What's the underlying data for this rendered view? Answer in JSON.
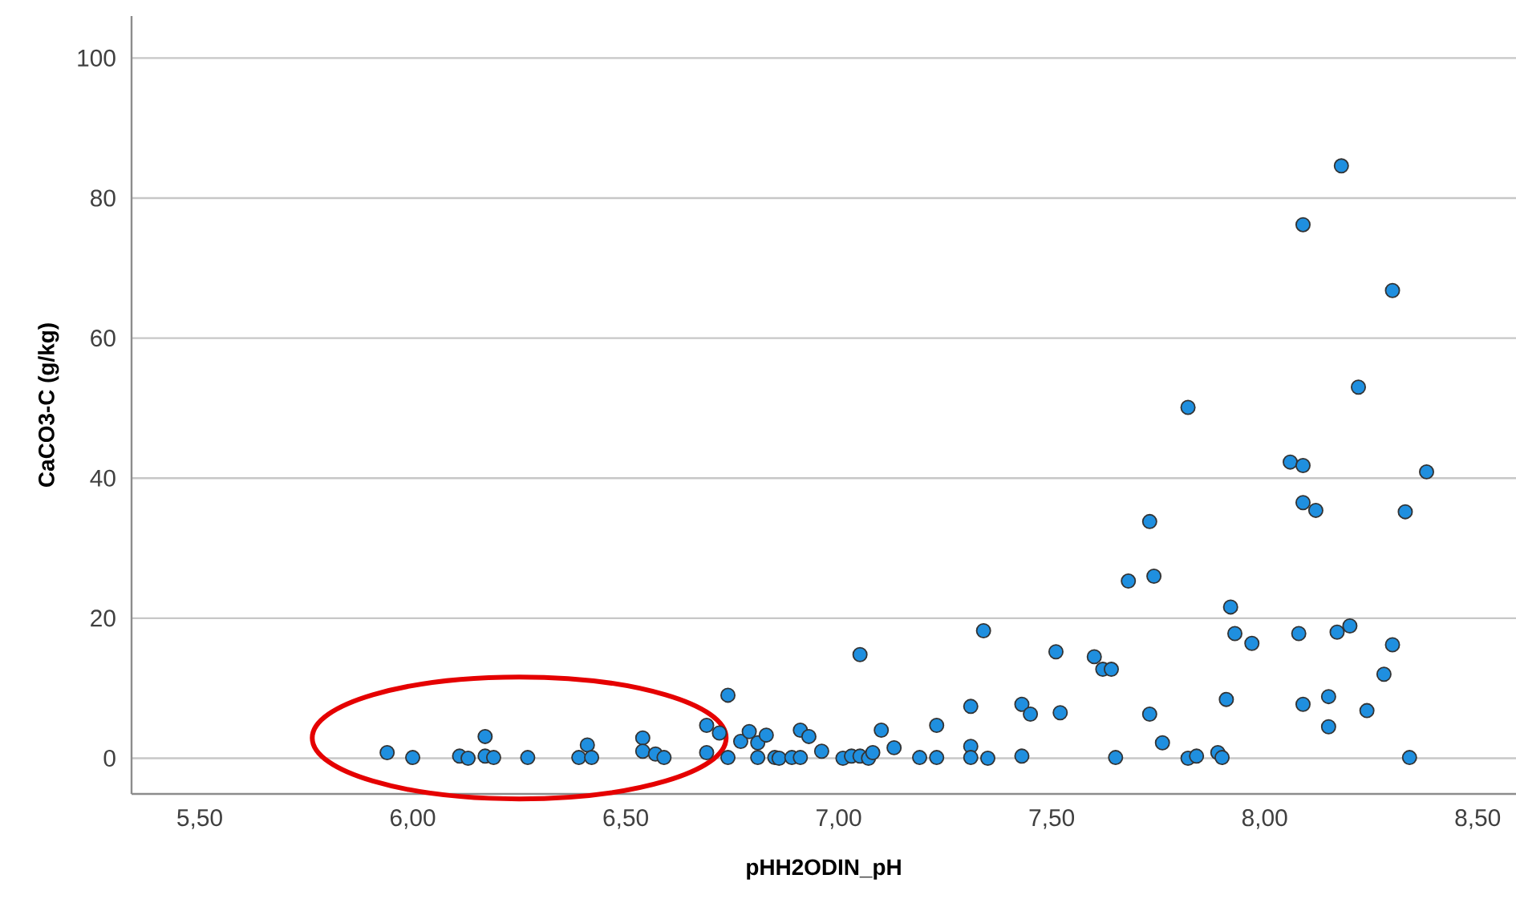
{
  "chart_data": {
    "type": "scatter",
    "xlabel": "pHH2ODIN_pH",
    "ylabel": "CaCO3-C (g/kg)",
    "xlim": [
      5.34,
      8.59
    ],
    "ylim": [
      -5.1,
      106
    ],
    "xticks": [
      {
        "value": 5.5,
        "label": "5,50"
      },
      {
        "value": 6.0,
        "label": "6,00"
      },
      {
        "value": 6.5,
        "label": "6,50"
      },
      {
        "value": 7.0,
        "label": "7,00"
      },
      {
        "value": 7.5,
        "label": "7,50"
      },
      {
        "value": 8.0,
        "label": "8,00"
      },
      {
        "value": 8.5,
        "label": "8,50"
      }
    ],
    "yticks": [
      0,
      20,
      40,
      60,
      80,
      100
    ],
    "grid": "y",
    "marker": "circle",
    "series": [
      {
        "color": "#1f8fdf",
        "x": [
          5.94,
          6.0,
          6.11,
          6.13,
          6.17,
          6.17,
          6.19,
          6.27,
          6.39,
          6.41,
          6.42,
          6.54,
          6.54,
          6.57,
          6.59,
          6.69,
          6.69,
          6.72,
          6.74,
          6.74,
          6.77,
          6.79,
          6.81,
          6.81,
          6.83,
          6.85,
          6.86,
          6.89,
          6.91,
          6.91,
          6.93,
          6.96,
          7.01,
          7.03,
          7.05,
          7.05,
          7.07,
          7.08,
          7.1,
          7.13,
          7.19,
          7.23,
          7.23,
          7.31,
          7.31,
          7.31,
          7.34,
          7.35,
          7.43,
          7.43,
          7.45,
          7.51,
          7.52,
          7.6,
          7.62,
          7.64,
          7.65,
          7.68,
          7.73,
          7.74,
          7.73,
          7.76,
          7.82,
          7.82,
          7.84,
          7.89,
          7.9,
          7.91,
          7.92,
          7.93,
          7.97,
          8.06,
          8.09,
          8.09,
          8.09,
          8.09,
          8.08,
          8.12,
          8.15,
          8.15,
          8.17,
          8.18,
          8.2,
          8.22,
          8.24,
          8.28,
          8.3,
          8.3,
          8.33,
          8.34,
          8.38
        ],
        "values": [
          0.8,
          0.1,
          0.3,
          0,
          3.1,
          0.3,
          0.1,
          0.1,
          0.1,
          1.9,
          0.1,
          2.9,
          1.0,
          0.6,
          0.1,
          4.7,
          0.8,
          3.6,
          9.0,
          0.1,
          2.4,
          3.8,
          2.2,
          0.1,
          3.3,
          0.1,
          0,
          0.1,
          4.0,
          0.1,
          3.1,
          1.0,
          0,
          0.3,
          0.3,
          14.8,
          0,
          0.8,
          4.0,
          1.5,
          0.1,
          4.7,
          0.1,
          7.4,
          1.7,
          0.1,
          18.2,
          0,
          7.7,
          0.3,
          6.3,
          15.2,
          6.5,
          14.5,
          12.7,
          12.7,
          0.1,
          25.3,
          33.8,
          26.0,
          6.3,
          2.2,
          50.1,
          0,
          0.3,
          0.8,
          0.1,
          8.4,
          21.6,
          17.8,
          16.4,
          42.3,
          41.8,
          76.2,
          36.5,
          7.7,
          17.8,
          35.4,
          4.5,
          8.8,
          18.0,
          84.6,
          18.9,
          53.0,
          6.8,
          12.0,
          66.8,
          16.2,
          35.2,
          0.1,
          40.9
        ]
      }
    ]
  }
}
